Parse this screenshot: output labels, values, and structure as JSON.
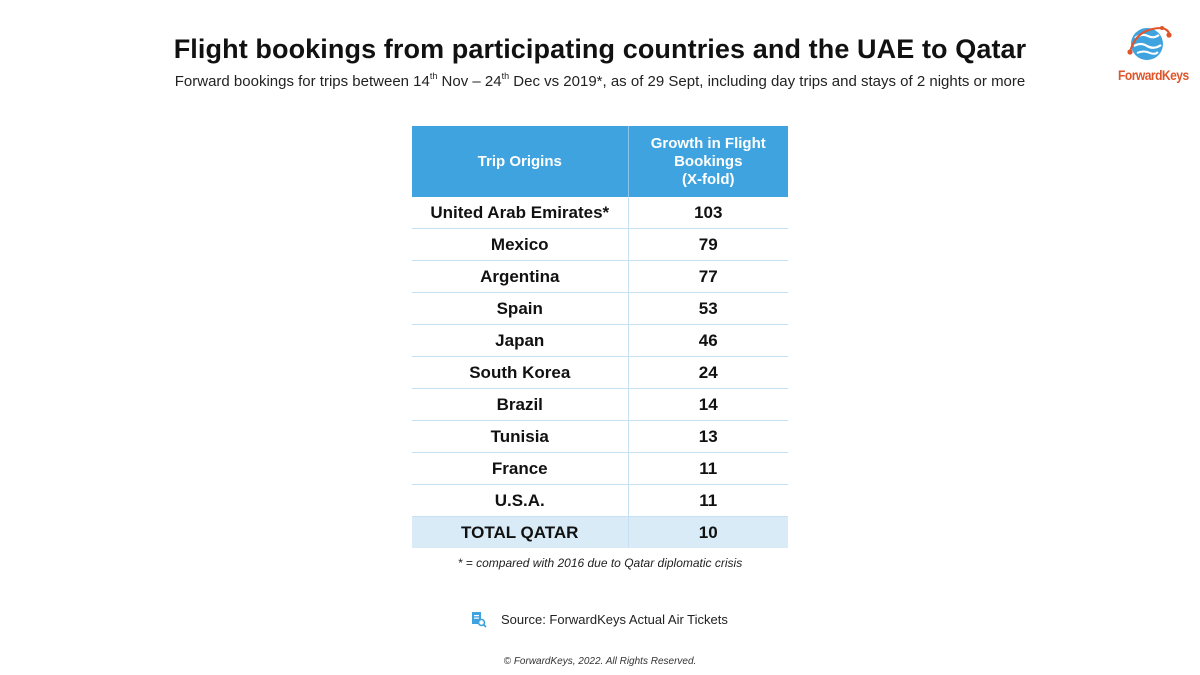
{
  "header": {
    "title": "Flight bookings from participating countries and the UAE to Qatar",
    "subtitle_parts": [
      "Forward bookings for trips between 14",
      "th",
      " Nov – 24",
      "th",
      " Dec vs 2019*, as of 29 Sept, including day trips and stays of 2 nights or more"
    ]
  },
  "logo": {
    "text": "ForwardKeys",
    "colors": {
      "globe": "#3fa3e0",
      "orbit": "#e0542a"
    }
  },
  "chart_data": {
    "type": "table",
    "columns": [
      "Trip Origins",
      "Growth in Flight Bookings (X-fold)"
    ],
    "column_header_lines": [
      [
        "Trip Origins"
      ],
      [
        "Growth in Flight",
        "Bookings",
        "(X-fold)"
      ]
    ],
    "rows": [
      [
        "United Arab Emirates*",
        "103"
      ],
      [
        "Mexico",
        "79"
      ],
      [
        "Argentina",
        "77"
      ],
      [
        "Spain",
        "53"
      ],
      [
        "Japan",
        "46"
      ],
      [
        "South Korea",
        "24"
      ],
      [
        "Brazil",
        "14"
      ],
      [
        "Tunisia",
        "13"
      ],
      [
        "France",
        "11"
      ],
      [
        "U.S.A.",
        "11"
      ]
    ],
    "total_row": [
      "TOTAL QATAR",
      "10"
    ],
    "colors": {
      "header_bg": "#3fa3e0",
      "total_bg": "#d9ebf7",
      "grid": "#c7e0f2"
    }
  },
  "footnote": "* = compared with 2016 due to Qatar diplomatic crisis",
  "source": {
    "icon": "document-search-icon",
    "text": "Source: ForwardKeys Actual Air Tickets"
  },
  "copyright": "© ForwardKeys, 2022. All Rights Reserved."
}
